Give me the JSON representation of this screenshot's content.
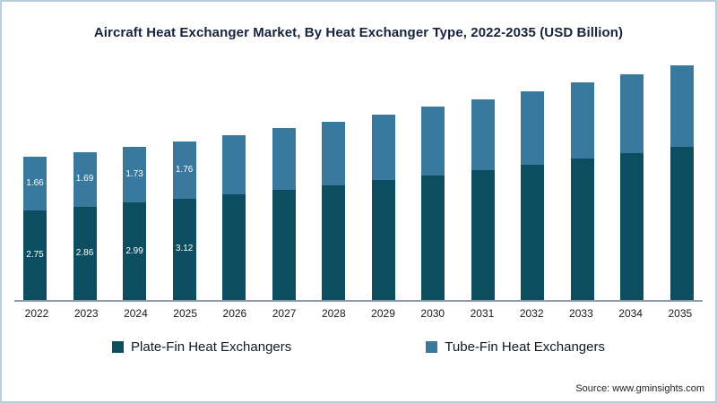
{
  "chart_data": {
    "type": "bar",
    "stacked": true,
    "title": "Aircraft Heat Exchanger Market, By Heat Exchanger Type, 2022-2035 (USD Billion)",
    "categories": [
      "2022",
      "2023",
      "2024",
      "2025",
      "2026",
      "2027",
      "2028",
      "2029",
      "2030",
      "2031",
      "2032",
      "2033",
      "2034",
      "2035"
    ],
    "series": [
      {
        "name": "Plate-Fin Heat Exchangers",
        "color": "#0d4d60",
        "values": [
          2.75,
          2.86,
          2.99,
          3.12,
          3.25,
          3.39,
          3.53,
          3.68,
          3.84,
          4.0,
          4.17,
          4.35,
          4.53,
          4.72
        ]
      },
      {
        "name": "Tube-Fin Heat Exchangers",
        "color": "#38799d",
        "values": [
          1.66,
          1.69,
          1.73,
          1.76,
          1.83,
          1.89,
          1.96,
          2.03,
          2.1,
          2.17,
          2.25,
          2.33,
          2.41,
          2.5
        ]
      }
    ],
    "labeled_categories": [
      "2022",
      "2023",
      "2024",
      "2025"
    ],
    "ylim": [
      0,
      7.6
    ],
    "xlabel": "",
    "ylabel": "",
    "grid": false,
    "legend_position": "bottom"
  },
  "source": {
    "text": "Source: www.gminsights.com"
  }
}
